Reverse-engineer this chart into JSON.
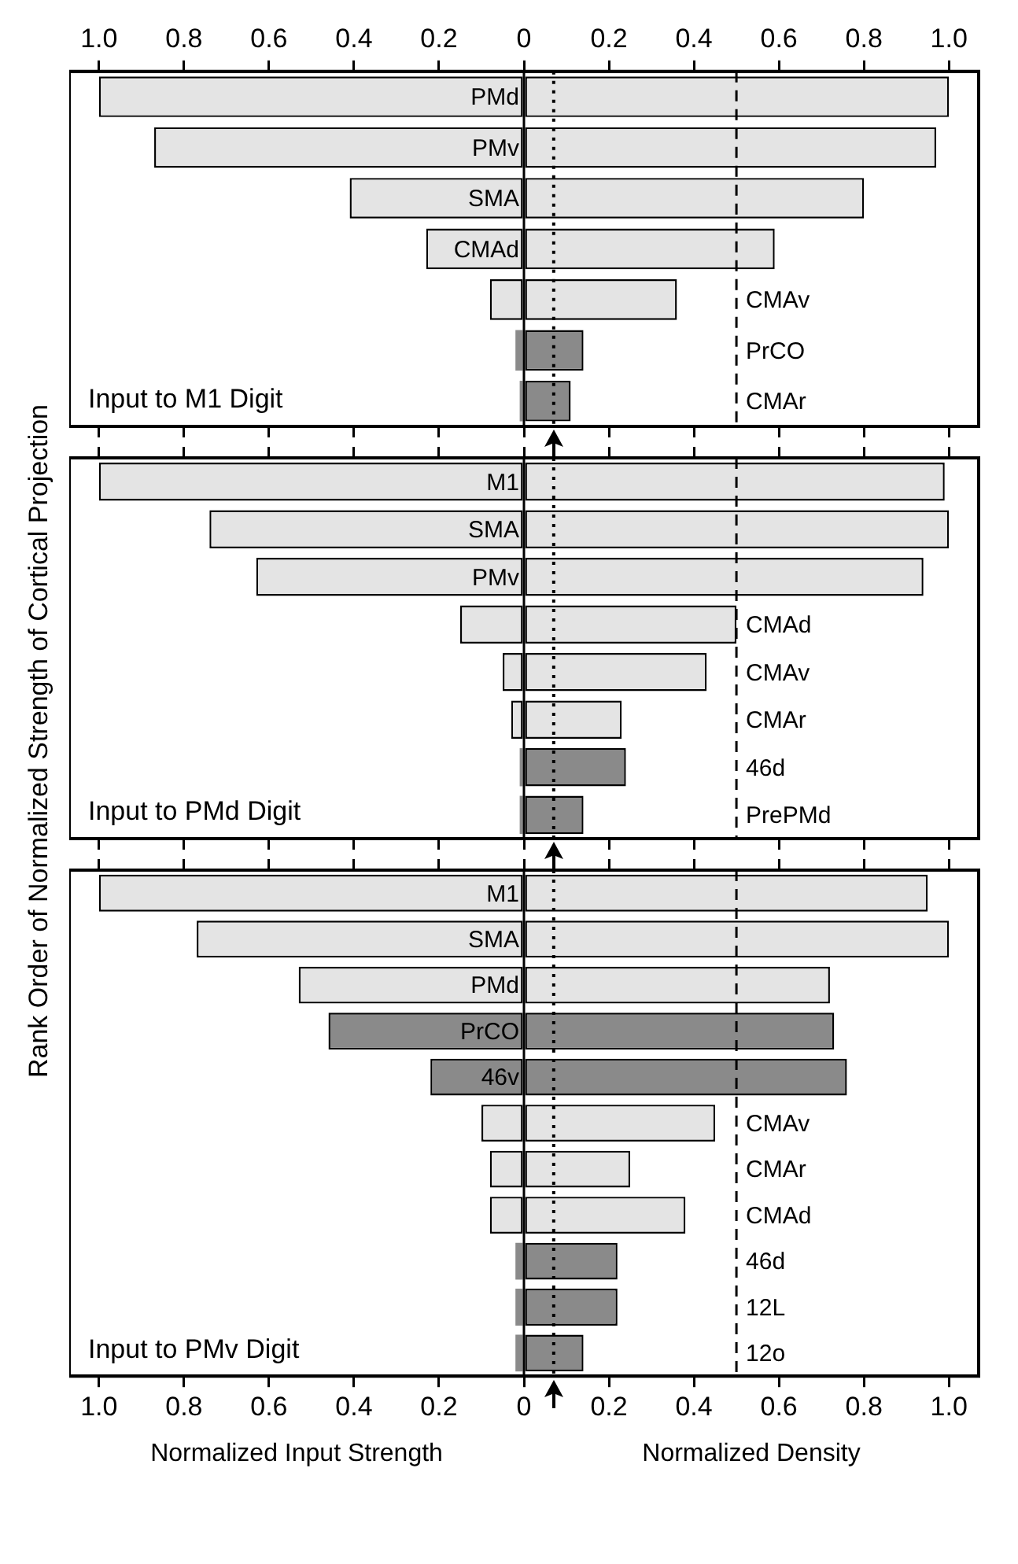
{
  "chart_data": [
    {
      "type": "bar",
      "orientation": "horizontal",
      "stacked": true,
      "title": "Input to M1 Digit",
      "categories": [
        "PMd",
        "PMv",
        "SMA",
        "CMAd",
        "CMAv",
        "PrCO",
        "CMAr"
      ],
      "series": [
        {
          "values": [
            -1.0,
            -0.87,
            -0.41,
            -0.23,
            -0.08,
            -0.02,
            -0.01
          ],
          "colors": [
            "#e4e4e4",
            "#e4e4e4",
            "#e4e4e4",
            "#e4e4e4",
            "#e4e4e4",
            "#8a8a8a",
            "#8a8a8a"
          ]
        },
        {
          "values": [
            1.0,
            0.97,
            0.8,
            0.59,
            0.36,
            0.14,
            0.11
          ],
          "colors": [
            "#e4e4e4",
            "#e4e4e4",
            "#e4e4e4",
            "#e4e4e4",
            "#e4e4e4",
            "#8a8a8a",
            "#8a8a8a"
          ]
        }
      ],
      "xlim": [
        -1.07,
        1.07
      ],
      "xticks": [
        {
          "value": -1,
          "label": "1.0"
        },
        {
          "value": -0.8,
          "label": "0.8"
        },
        {
          "value": -0.6,
          "label": "0.6"
        },
        {
          "value": -0.4,
          "label": "0.4"
        },
        {
          "value": -0.2,
          "label": "0.2"
        },
        0,
        0.2,
        0.4,
        0.6,
        0.8,
        {
          "value": 1,
          "label": "1.0"
        }
      ],
      "ref_lines": [
        {
          "axis": "x",
          "value": 0,
          "line_style": "solid",
          "color": "#000000"
        },
        {
          "axis": "x",
          "value": 0.07,
          "line_style": "dotted",
          "color": "#000000"
        },
        {
          "axis": "x",
          "value": 0.5,
          "line_style": "dashed",
          "color": "#000000"
        }
      ],
      "tick_labels": "x",
      "grid": false,
      "legend": false
    },
    {
      "type": "bar",
      "orientation": "horizontal",
      "stacked": true,
      "title": "Input to PMd Digit",
      "ylabel": "Rank Order of Normalized Strength of Cortical Projection",
      "categories": [
        "M1",
        "SMA",
        "PMv",
        "CMAd",
        "CMAv",
        "CMAr",
        "46d",
        "PrePMd"
      ],
      "series": [
        {
          "values": [
            -1.0,
            -0.74,
            -0.63,
            -0.15,
            -0.05,
            -0.03,
            -0.01,
            -0.01
          ],
          "colors": [
            "#e4e4e4",
            "#e4e4e4",
            "#e4e4e4",
            "#e4e4e4",
            "#e4e4e4",
            "#e4e4e4",
            "#8a8a8a",
            "#8a8a8a"
          ]
        },
        {
          "values": [
            0.99,
            1.0,
            0.94,
            0.5,
            0.43,
            0.23,
            0.24,
            0.14
          ],
          "colors": [
            "#e4e4e4",
            "#e4e4e4",
            "#e4e4e4",
            "#e4e4e4",
            "#e4e4e4",
            "#e4e4e4",
            "#8a8a8a",
            "#8a8a8a"
          ]
        }
      ],
      "xlim": [
        -1.07,
        1.07
      ],
      "xticks": [
        {
          "value": -1,
          "label": null
        },
        {
          "value": -0.8,
          "label": null
        },
        {
          "value": -0.6,
          "label": null
        },
        {
          "value": -0.4,
          "label": null
        },
        {
          "value": -0.2,
          "label": null
        },
        {
          "value": 0,
          "label": null
        },
        {
          "value": 0.2,
          "label": null
        },
        {
          "value": 0.4,
          "label": null
        },
        {
          "value": 0.6,
          "label": null
        },
        {
          "value": 0.8,
          "label": null
        },
        {
          "value": 1,
          "label": null
        }
      ],
      "ref_lines": [
        {
          "axis": "x",
          "value": 0,
          "line_style": "solid",
          "color": "#000000"
        },
        {
          "axis": "x",
          "value": 0.07,
          "line_style": "dotted",
          "color": "#000000"
        },
        {
          "axis": "x",
          "value": 0.5,
          "line_style": "dashed",
          "color": "#000000"
        }
      ],
      "tick_labels": false,
      "grid": false,
      "legend": false
    },
    {
      "type": "bar",
      "orientation": "horizontal",
      "stacked": true,
      "title": "Input to PMv Digit",
      "xlabel": "Normalized Input Strength",
      "annotations": [
        "Normalized Density"
      ],
      "categories": [
        "M1",
        "SMA",
        "PMd",
        "PrCO",
        "46v",
        "CMAv",
        "CMAr",
        "CMAd",
        "46d",
        "12L",
        "12o"
      ],
      "series": [
        {
          "values": [
            -1.0,
            -0.77,
            -0.53,
            -0.46,
            -0.22,
            -0.1,
            -0.08,
            -0.08,
            -0.02,
            -0.02,
            -0.02
          ],
          "colors": [
            "#e4e4e4",
            "#e4e4e4",
            "#e4e4e4",
            "#8a8a8a",
            "#8a8a8a",
            "#e4e4e4",
            "#e4e4e4",
            "#e4e4e4",
            "#8a8a8a",
            "#8a8a8a",
            "#8a8a8a"
          ]
        },
        {
          "values": [
            0.95,
            1.0,
            0.72,
            0.73,
            0.76,
            0.45,
            0.25,
            0.38,
            0.22,
            0.22,
            0.14
          ],
          "colors": [
            "#e4e4e4",
            "#e4e4e4",
            "#e4e4e4",
            "#8a8a8a",
            "#8a8a8a",
            "#e4e4e4",
            "#e4e4e4",
            "#e4e4e4",
            "#8a8a8a",
            "#8a8a8a",
            "#8a8a8a"
          ]
        }
      ],
      "xlim": [
        -1.07,
        1.07
      ],
      "xticks": [
        {
          "value": -1,
          "label": "1.0"
        },
        {
          "value": -0.8,
          "label": "0.8"
        },
        {
          "value": -0.6,
          "label": "0.6"
        },
        {
          "value": -0.4,
          "label": "0.4"
        },
        {
          "value": -0.2,
          "label": "0.2"
        },
        0,
        0.2,
        0.4,
        0.6,
        0.8,
        {
          "value": 1,
          "label": "1.0"
        }
      ],
      "ref_lines": [
        {
          "axis": "x",
          "value": 0,
          "line_style": "solid",
          "color": "#000000"
        },
        {
          "axis": "x",
          "value": 0.07,
          "line_style": "dotted",
          "color": "#000000"
        },
        {
          "axis": "x",
          "value": 0.5,
          "line_style": "dashed",
          "color": "#000000"
        }
      ],
      "tick_labels": "x",
      "grid": false,
      "legend": false
    }
  ]
}
